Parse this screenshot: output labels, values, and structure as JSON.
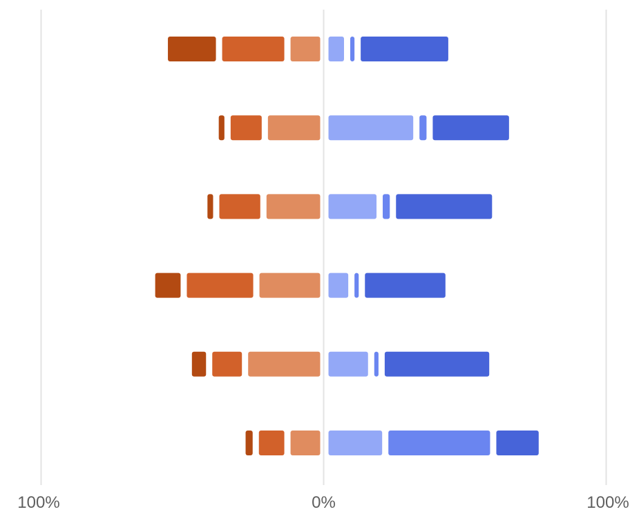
{
  "chart_data": {
    "type": "bar",
    "layout": "diverging-stacked-horizontal",
    "title": "",
    "xlabel": "",
    "ylabel": "",
    "xlim": [
      -100,
      100
    ],
    "x_ticks": [
      {
        "value": -100,
        "label": "100%"
      },
      {
        "value": 0,
        "label": "0%"
      },
      {
        "value": 100,
        "label": "100%"
      }
    ],
    "grid": true,
    "legend": "none",
    "negative_series": [
      {
        "color": "#e08c5f",
        "values": [
          10.5,
          18.5,
          19,
          21.5,
          25.5,
          10.5
        ]
      },
      {
        "color": "#d2612a",
        "values": [
          22,
          11,
          14.5,
          23.5,
          10.5,
          9
        ]
      },
      {
        "color": "#b34a12",
        "values": [
          17,
          2,
          2,
          9,
          5,
          2.5
        ]
      }
    ],
    "positive_series": [
      {
        "color": "#93a8f7",
        "values": [
          5.5,
          30,
          17,
          7,
          14,
          19
        ]
      },
      {
        "color": "#6a85f0",
        "values": [
          1.5,
          2.5,
          2.5,
          1.5,
          1.5,
          36
        ]
      },
      {
        "color": "#4764d9",
        "values": [
          31,
          27,
          34,
          28.5,
          37,
          15
        ]
      }
    ]
  }
}
